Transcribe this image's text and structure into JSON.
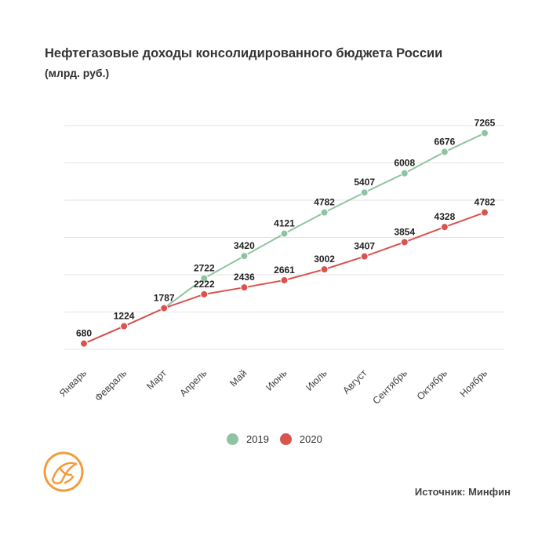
{
  "header": {
    "title": "Нефтегазовые доходы консолидированного бюджета России",
    "subtitle": "(млрд. руб.)"
  },
  "footer": {
    "source": "Источник: Минфин"
  },
  "colors": {
    "series_2019": "#8fc4a3",
    "series_2020": "#d9534f",
    "grid": "#e3e3e3",
    "logo": "#f39c3c"
  },
  "chart_data": {
    "type": "line",
    "title": "Нефтегазовые доходы консолидированного бюджета России",
    "subtitle": "(млрд. руб.)",
    "categories": [
      "Январь",
      "Февраль",
      "Март",
      "Апрель",
      "Май",
      "Июнь",
      "Июль",
      "Август",
      "Сентябрь",
      "Октябрь",
      "Ноябрь"
    ],
    "series": [
      {
        "name": "2019",
        "color": "#8fc4a3",
        "values": [
          680,
          1224,
          1787,
          2722,
          3420,
          4121,
          4782,
          5407,
          6008,
          6676,
          7265
        ]
      },
      {
        "name": "2020",
        "color": "#d9534f",
        "values": [
          680,
          1224,
          1787,
          2222,
          2436,
          2661,
          3002,
          3407,
          3854,
          4328,
          4782
        ]
      }
    ],
    "data_labels": {
      "2019": [
        null,
        null,
        null,
        2722,
        3420,
        4121,
        4782,
        5407,
        6008,
        6676,
        7265
      ],
      "2020": [
        680,
        1224,
        1787,
        2222,
        2436,
        2661,
        3002,
        3407,
        3854,
        4328,
        4782
      ]
    },
    "ylim": [
      500,
      7500
    ],
    "y_axis_labels_shown": false,
    "grid": true,
    "legend_position": "bottom"
  }
}
